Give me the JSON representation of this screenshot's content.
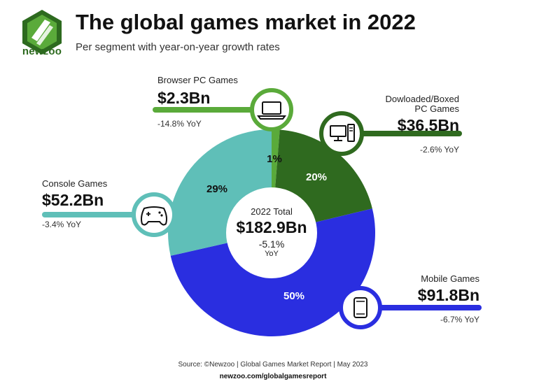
{
  "brand": {
    "name": "newzoo",
    "color_light": "#5aaa3a",
    "color_dark": "#2d6a1f"
  },
  "header": {
    "title": "The global games market in 2022",
    "subtitle": "Per segment with year-on-year growth rates"
  },
  "center": {
    "label": "2022 Total",
    "value": "$182.9Bn",
    "growth": "-5.1%",
    "growth_unit": "YoY"
  },
  "segments": [
    {
      "name": "Browser PC Games",
      "value": "$2.3Bn",
      "yoy": "-14.8% YoY",
      "share": "1%",
      "color": "#5aaa3a",
      "icon": "laptop-icon"
    },
    {
      "name_line1": "Dowloaded/Boxed",
      "name_line2": "PC Games",
      "value": "$36.5Bn",
      "yoy": "-2.6% YoY",
      "share": "20%",
      "color": "#2f6a1f",
      "icon": "desktop-pc-icon"
    },
    {
      "name": "Mobile Games",
      "value": "$91.8Bn",
      "yoy": "-6.7% YoY",
      "share": "50%",
      "color": "#2a2ee0",
      "icon": "mobile-phone-icon"
    },
    {
      "name": "Console Games",
      "value": "$52.2Bn",
      "yoy": "-3.4% YoY",
      "share": "29%",
      "color": "#5fbfb8",
      "icon": "gamepad-icon"
    }
  ],
  "chart_data": {
    "type": "pie",
    "categories": [
      "Browser PC Games",
      "Dowloaded/Boxed PC Games",
      "Mobile Games",
      "Console Games"
    ],
    "values": [
      2.3,
      36.5,
      91.8,
      52.2
    ],
    "shares": [
      1,
      20,
      50,
      29
    ],
    "growth_yoy": [
      -14.8,
      -2.6,
      -6.7,
      -3.4
    ],
    "total": 182.9,
    "total_growth_yoy": -5.1,
    "colors": [
      "#5aaa3a",
      "#2f6a1f",
      "#2a2ee0",
      "#5fbfb8"
    ],
    "title": "The global games market in 2022"
  },
  "footer": {
    "source": "Source: ©Newzoo | Global Games Market Report | May 2023",
    "site": "newzoo.com/globalgamesreport"
  }
}
